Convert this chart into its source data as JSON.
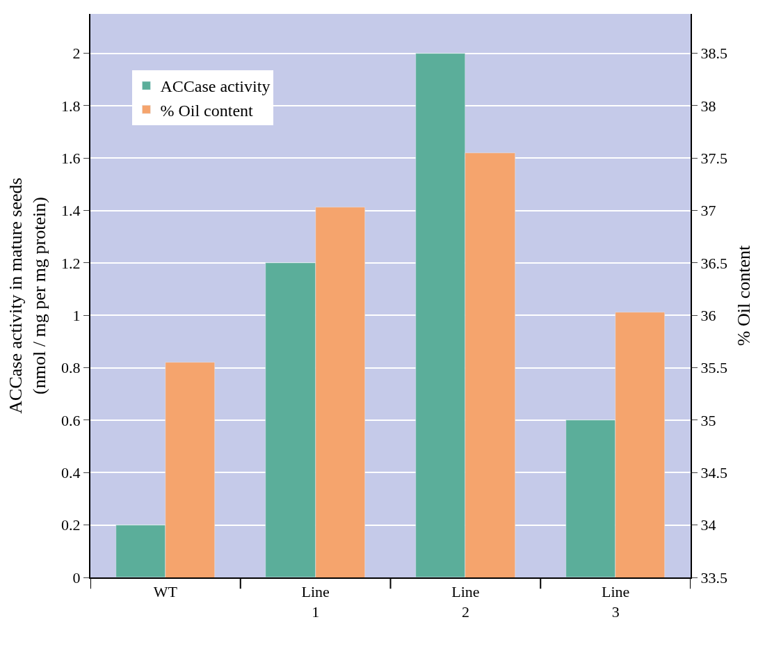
{
  "chart_data": {
    "type": "bar",
    "categories": [
      "WT",
      "Line\n1",
      "Line\n2",
      "Line\n3"
    ],
    "ylabel": "ACCase activity in mature seeds\n(nmol / mg per mg protein)",
    "y2label": "% Oil content",
    "series": [
      {
        "name": "ACCase activity",
        "color": "#5bae9a",
        "values": [
          0.2,
          1.2,
          2.0,
          0.6
        ]
      },
      {
        "name": "% Oil content",
        "color": "#f5a46d",
        "values": [
          35.55,
          37.03,
          37.55,
          36.03
        ],
        "axis": "y2"
      }
    ],
    "ylim": [
      0,
      2.15
    ],
    "yticks": [
      0,
      0.2,
      0.4,
      0.6,
      0.8,
      1,
      1.2,
      1.4,
      1.6,
      1.8,
      2
    ],
    "y2lim": [
      33.5,
      38.875
    ],
    "y2ticks": [
      33.5,
      34,
      34.5,
      35,
      35.5,
      36,
      36.5,
      37,
      37.5,
      38,
      38.5
    ],
    "grid": "y",
    "legend": "top left"
  }
}
